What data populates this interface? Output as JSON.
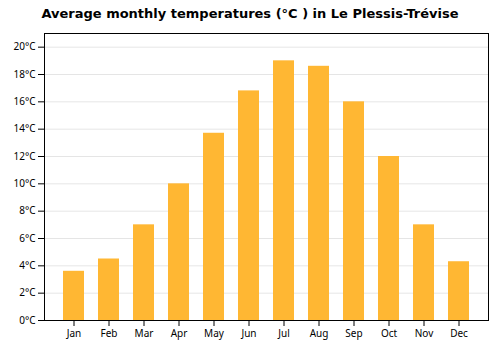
{
  "chart_data": {
    "type": "bar",
    "title": "Average monthly temperatures (°C ) in Le Plessis-Trévise",
    "categories": [
      "Jan",
      "Feb",
      "Mar",
      "Apr",
      "May",
      "Jun",
      "Jul",
      "Aug",
      "Sep",
      "Oct",
      "Nov",
      "Dec"
    ],
    "values": [
      3.6,
      4.5,
      7.0,
      10.0,
      13.7,
      16.8,
      19.0,
      18.6,
      16.0,
      12.0,
      7.0,
      4.3
    ],
    "color": "#FFB733",
    "ylim": [
      0,
      21
    ],
    "yticks": [
      {
        "value": 0,
        "label": "0°C"
      },
      {
        "value": 2,
        "label": "2°C"
      },
      {
        "value": 4,
        "label": "4°C"
      },
      {
        "value": 6,
        "label": "6°C"
      },
      {
        "value": 8,
        "label": "8°C"
      },
      {
        "value": 10,
        "label": "10°C"
      },
      {
        "value": 12,
        "label": "12°C"
      },
      {
        "value": 14,
        "label": "14°C"
      },
      {
        "value": 16,
        "label": "16°C"
      },
      {
        "value": 18,
        "label": "18°C"
      },
      {
        "value": 20,
        "label": "20°C"
      }
    ],
    "grid": true
  }
}
